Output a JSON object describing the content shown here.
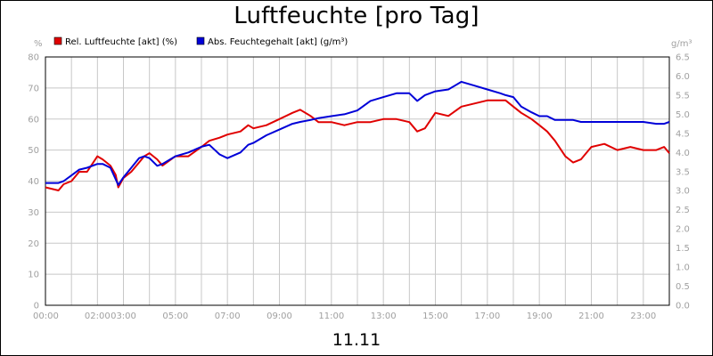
{
  "title": "Luftfeuchte [pro Tag]",
  "date_label": "11.11",
  "chart_data": {
    "type": "line",
    "title": "Luftfeuchte [pro Tag]",
    "xlabel": "11.11",
    "x_range_hours": [
      0,
      24
    ],
    "x_tick_labels": [
      "00:00",
      "02:00",
      "03:00",
      "05:00",
      "07:00",
      "09:00",
      "11:00",
      "13:00",
      "15:00",
      "17:00",
      "19:00",
      "21:00",
      "23:00"
    ],
    "x_tick_hours": [
      0,
      2,
      3,
      5,
      7,
      9,
      11,
      13,
      15,
      17,
      19,
      21,
      23
    ],
    "left_axis": {
      "unit": "%",
      "range": [
        0,
        80
      ],
      "ticks": [
        0,
        10,
        20,
        30,
        40,
        50,
        60,
        70,
        80
      ]
    },
    "right_axis": {
      "unit": "g/m³",
      "range": [
        0.0,
        6.5
      ],
      "ticks": [
        "0.0",
        "0.5",
        "1.0",
        "1.5",
        "2.0",
        "2.5",
        "3.0",
        "3.5",
        "4.0",
        "4.5",
        "5.0",
        "5.5",
        "6.0",
        "6.5"
      ]
    },
    "grid": true,
    "legend_position": "top-left",
    "series": [
      {
        "name": "Rel. Luftfeuchte [akt] (%)",
        "color": "#e00000",
        "axis": "left",
        "x": [
          0,
          0.5,
          0.7,
          1.0,
          1.3,
          1.6,
          2.0,
          2.2,
          2.5,
          2.7,
          2.8,
          3.0,
          3.3,
          3.6,
          3.8,
          4.0,
          4.3,
          4.5,
          5.0,
          5.5,
          6.0,
          6.3,
          6.7,
          7.0,
          7.5,
          7.8,
          8.0,
          8.5,
          9.0,
          9.5,
          9.8,
          10.2,
          10.5,
          11.0,
          11.5,
          12.0,
          12.5,
          13.0,
          13.5,
          14.0,
          14.3,
          14.6,
          15.0,
          15.5,
          16.0,
          16.5,
          17.0,
          17.5,
          17.7,
          18.0,
          18.3,
          18.7,
          19.0,
          19.3,
          19.6,
          20.0,
          20.3,
          20.6,
          21.0,
          21.5,
          22.0,
          22.5,
          23.0,
          23.5,
          23.8,
          24.0
        ],
        "y": [
          38,
          37,
          39,
          40,
          43,
          43,
          48,
          47,
          45,
          42,
          38,
          41,
          43,
          46,
          48,
          49,
          47,
          45,
          48,
          48,
          51,
          53,
          54,
          55,
          56,
          58,
          57,
          58,
          60,
          62,
          63,
          61,
          59,
          59,
          58,
          59,
          59,
          60,
          60,
          59,
          56,
          57,
          62,
          61,
          64,
          65,
          66,
          66,
          66,
          64,
          62,
          60,
          58,
          56,
          53,
          48,
          46,
          47,
          51,
          52,
          50,
          51,
          50,
          50,
          51,
          49
        ]
      },
      {
        "name": "Abs. Feuchtegehalt [akt] (g/m³)",
        "color": "#0000d8",
        "axis": "right",
        "x": [
          0,
          0.5,
          0.7,
          1.0,
          1.3,
          1.6,
          2.0,
          2.2,
          2.5,
          2.7,
          2.8,
          3.0,
          3.3,
          3.6,
          3.8,
          4.0,
          4.3,
          4.5,
          5.0,
          5.5,
          6.0,
          6.3,
          6.7,
          7.0,
          7.5,
          7.8,
          8.0,
          8.5,
          9.0,
          9.5,
          9.8,
          10.2,
          10.5,
          11.0,
          11.5,
          12.0,
          12.5,
          13.0,
          13.5,
          14.0,
          14.3,
          14.6,
          15.0,
          15.5,
          16.0,
          16.5,
          17.0,
          17.5,
          17.7,
          18.0,
          18.3,
          18.7,
          19.0,
          19.3,
          19.6,
          20.0,
          20.3,
          20.6,
          21.0,
          21.5,
          22.0,
          22.5,
          23.0,
          23.5,
          23.8,
          24.0
        ],
        "y": [
          3.2,
          3.2,
          3.25,
          3.4,
          3.55,
          3.6,
          3.7,
          3.7,
          3.6,
          3.3,
          3.15,
          3.35,
          3.6,
          3.85,
          3.9,
          3.85,
          3.65,
          3.7,
          3.9,
          4.0,
          4.15,
          4.2,
          3.95,
          3.85,
          4.0,
          4.2,
          4.25,
          4.45,
          4.6,
          4.75,
          4.8,
          4.85,
          4.9,
          4.95,
          5.0,
          5.1,
          5.35,
          5.45,
          5.55,
          5.55,
          5.35,
          5.5,
          5.6,
          5.65,
          5.85,
          5.75,
          5.65,
          5.55,
          5.5,
          5.45,
          5.2,
          5.05,
          4.95,
          4.95,
          4.85,
          4.85,
          4.85,
          4.8,
          4.8,
          4.8,
          4.8,
          4.8,
          4.8,
          4.75,
          4.75,
          4.8
        ]
      }
    ]
  }
}
